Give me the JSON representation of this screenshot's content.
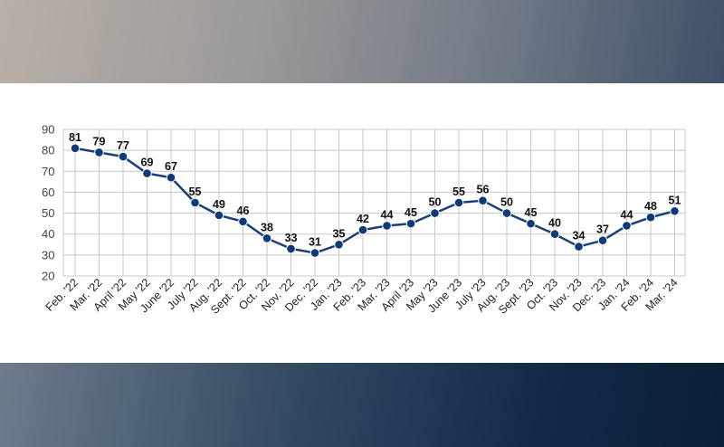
{
  "colors": {
    "line": "#1c3f79",
    "marker": "#0f3a7a",
    "grid": "#c8c8c8"
  },
  "chart_data": {
    "type": "line",
    "title": "",
    "xlabel": "",
    "ylabel": "",
    "ylim": [
      20,
      90
    ],
    "yticks": [
      20,
      30,
      40,
      50,
      60,
      70,
      80,
      90
    ],
    "grid": true,
    "categories": [
      "Feb. '22",
      "Mar. '22",
      "April '22",
      "May '22",
      "June '22",
      "July '22",
      "Aug. '22",
      "Sept. '22",
      "Oct. '22",
      "Nov. '22",
      "Dec. '22",
      "Jan. '23",
      "Feb. '23",
      "Mar. '23",
      "April '23",
      "May '23",
      "June '23",
      "July '23",
      "Aug. '23",
      "Sept. '23",
      "Oct. '23",
      "Nov. '23",
      "Dec. '23",
      "Jan. '24",
      "Feb. '24",
      "Mar. '24"
    ],
    "series": [
      {
        "values": [
          81,
          79,
          77,
          69,
          67,
          55,
          49,
          46,
          38,
          33,
          31,
          35,
          42,
          44,
          45,
          50,
          55,
          56,
          50,
          45,
          40,
          34,
          37,
          44,
          48,
          51
        ]
      }
    ]
  }
}
